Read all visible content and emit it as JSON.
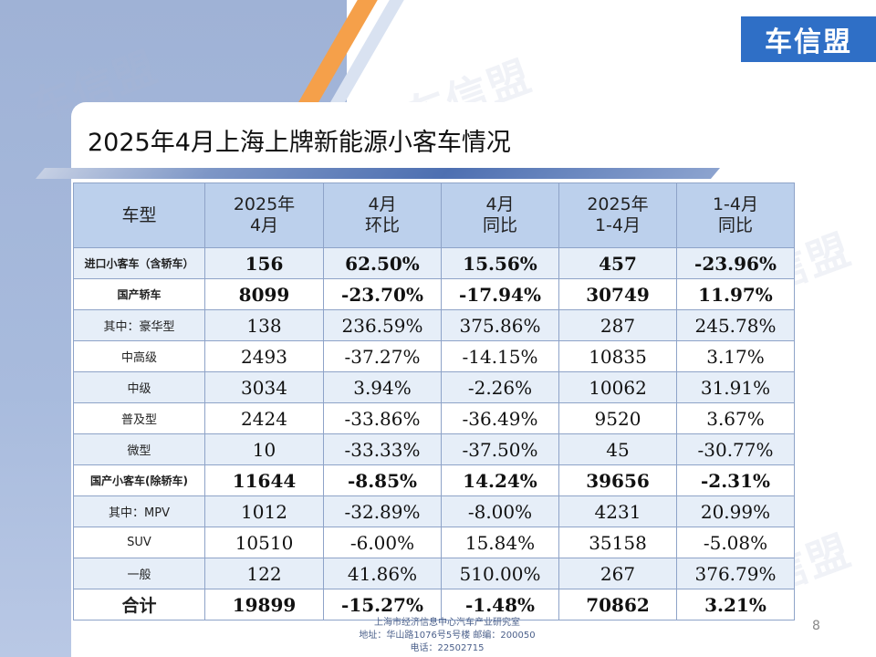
{
  "brand": {
    "logo_text": "车信盟"
  },
  "watermark_text": "车信盟",
  "title": "2025年4月上海上牌新能源小客车情况",
  "table": {
    "headers": [
      "车型",
      "2025年\n4月",
      "4月\n环比",
      "4月\n同比",
      "2025年\n1-4月",
      "1-4月\n同比"
    ],
    "rows": [
      {
        "cells": [
          "进口小客车（含轿车）",
          "156",
          "62.50%",
          "15.56%",
          "457",
          "-23.96%"
        ],
        "style": "bold"
      },
      {
        "cells": [
          "国产轿车",
          "8099",
          "-23.70%",
          "-17.94%",
          "30749",
          "11.97%"
        ],
        "style": "bold"
      },
      {
        "cells": [
          "其中：豪华型",
          "138",
          "236.59%",
          "375.86%",
          "287",
          "245.78%"
        ],
        "style": "normal"
      },
      {
        "cells": [
          "中高级",
          "2493",
          "-37.27%",
          "-14.15%",
          "10835",
          "3.17%"
        ],
        "style": "normal"
      },
      {
        "cells": [
          "中级",
          "3034",
          "3.94%",
          "-2.26%",
          "10062",
          "31.91%"
        ],
        "style": "normal"
      },
      {
        "cells": [
          "普及型",
          "2424",
          "-33.86%",
          "-36.49%",
          "9520",
          "3.67%"
        ],
        "style": "normal"
      },
      {
        "cells": [
          "微型",
          "10",
          "-33.33%",
          "-37.50%",
          "45",
          "-30.77%"
        ],
        "style": "normal"
      },
      {
        "cells": [
          "国产小客车(除轿车)",
          "11644",
          "-8.85%",
          "14.24%",
          "39656",
          "-2.31%"
        ],
        "style": "bold"
      },
      {
        "cells": [
          "其中：MPV",
          "1012",
          "-32.89%",
          "-8.00%",
          "4231",
          "20.99%"
        ],
        "style": "normal"
      },
      {
        "cells": [
          "SUV",
          "10510",
          "-6.00%",
          "15.84%",
          "35158",
          "-5.08%"
        ],
        "style": "normal"
      },
      {
        "cells": [
          "一般",
          "122",
          "41.86%",
          "510.00%",
          "267",
          "376.79%"
        ],
        "style": "normal"
      },
      {
        "cells": [
          "合计",
          "19899",
          "-15.27%",
          "-1.48%",
          "70862",
          "3.21%"
        ],
        "style": "total"
      }
    ]
  },
  "footer": {
    "line1": "上海市经济信息中心汽车产业研究室",
    "line2": "地址：华山路1076号5号楼    邮编：200050",
    "line3": "电话：22502715"
  },
  "page_number": "8",
  "colors": {
    "header_bg": "#bcd0ec",
    "alt_row_bg": "#e6eef8",
    "border": "#8ea3c8",
    "logo_bg": "#2f6fc6",
    "accent_orange": "#f5a04a"
  }
}
